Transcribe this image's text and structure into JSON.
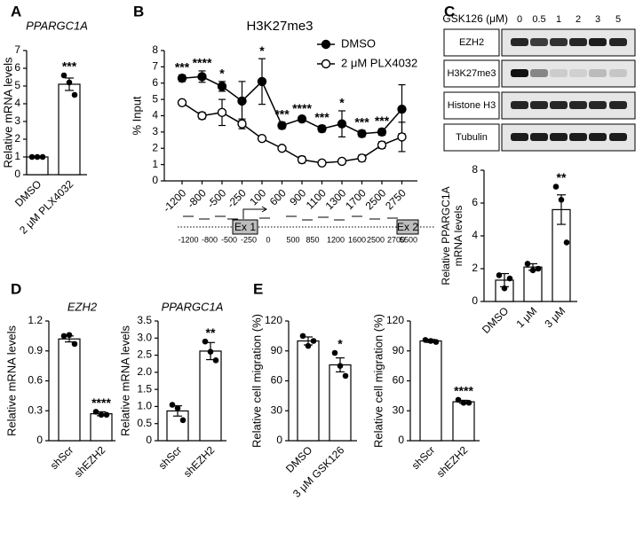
{
  "panel_labels": [
    "A",
    "B",
    "C",
    "D",
    "E"
  ],
  "blot": {
    "header": "GSK126 (μM)",
    "lanes": [
      "0",
      "0.5",
      "1",
      "2",
      "3",
      "5"
    ],
    "rows": [
      "EZH2",
      "H3K27me3",
      "Histone H3",
      "Tubulin"
    ]
  },
  "gene_map": {
    "exons": [
      "Ex 1",
      "Ex 2"
    ],
    "positions": [
      "-1200",
      "-800",
      "-500",
      "-250",
      "0",
      "500",
      "850",
      "1200",
      "1600",
      "2500",
      "2700",
      "5500"
    ]
  },
  "chart_data": [
    {
      "type": "bar",
      "title": "PPARGC1A",
      "ylabel": "Relative mRNA levels",
      "categories": [
        "DMSO",
        "2 μM PLX4032"
      ],
      "values": [
        1.0,
        5.1
      ],
      "errors": [
        0.03,
        0.35
      ],
      "points": [
        [
          1.0,
          1.0,
          1.0
        ],
        [
          5.6,
          5.2,
          4.5
        ]
      ],
      "annotations": [
        null,
        "***"
      ],
      "color": "#ffffff",
      "ylim": [
        0,
        7
      ],
      "yticks": [
        0,
        1,
        2,
        3,
        4,
        5,
        6,
        7
      ]
    },
    {
      "type": "line",
      "title": "H3K27me3",
      "ylabel": "% Input",
      "categories": [
        "-1200",
        "-800",
        "-500",
        "-250",
        "100",
        "600",
        "900",
        "1100",
        "1300",
        "1700",
        "2500",
        "2750"
      ],
      "series": [
        {
          "name": "DMSO",
          "color": "#000000",
          "values": [
            6.3,
            6.4,
            5.8,
            4.9,
            6.1,
            3.4,
            3.8,
            3.2,
            3.5,
            2.9,
            3.0,
            4.4
          ],
          "errors": [
            0.2,
            0.35,
            0.3,
            1.2,
            1.4,
            0.2,
            0.15,
            0.2,
            0.8,
            0.2,
            0.2,
            1.5
          ]
        },
        {
          "name": "2 μM PLX4032",
          "color": "#ffffff",
          "values": [
            4.8,
            4.0,
            4.2,
            3.5,
            2.6,
            2.0,
            1.3,
            1.1,
            1.2,
            1.4,
            2.2,
            2.7
          ],
          "errors": [
            0.1,
            0.2,
            0.8,
            0.3,
            0.1,
            0.1,
            0.2,
            0.1,
            0.1,
            0.2,
            0.2,
            0.9
          ]
        }
      ],
      "annotations": [
        "***",
        "****",
        "*",
        null,
        "*",
        "***",
        "****",
        "***",
        "*",
        "***",
        "***",
        null
      ],
      "ylim": [
        0,
        8
      ],
      "yticks": [
        0,
        1,
        2,
        3,
        4,
        5,
        6,
        7,
        8
      ]
    },
    {
      "type": "bar",
      "ylabel": [
        "Relative PPARGC1A",
        "mRNA levels"
      ],
      "categories": [
        "DMSO",
        "1 μM",
        "3 μM"
      ],
      "values": [
        1.3,
        2.1,
        5.6
      ],
      "errors": [
        0.4,
        0.2,
        0.9
      ],
      "points": [
        [
          1.6,
          0.8,
          1.4
        ],
        [
          2.3,
          1.9,
          2.0
        ],
        [
          7.0,
          6.2,
          3.6
        ]
      ],
      "annotations": [
        null,
        null,
        "**"
      ],
      "color": "#ffffff",
      "ylim": [
        0,
        8
      ],
      "yticks": [
        0,
        2,
        4,
        6,
        8
      ]
    },
    {
      "type": "bar",
      "title": "EZH2",
      "ylabel": "Relative mRNA levels",
      "categories": [
        "shScr",
        "shEZH2"
      ],
      "values": [
        1.02,
        0.27
      ],
      "errors": [
        0.03,
        0.02
      ],
      "points": [
        [
          1.05,
          1.06,
          0.97
        ],
        [
          0.29,
          0.26,
          0.26
        ]
      ],
      "annotations": [
        null,
        "****"
      ],
      "color": "#ffffff",
      "ylim": [
        0,
        1.2
      ],
      "yticks": [
        0,
        0.3,
        0.6,
        0.9,
        1.2
      ]
    },
    {
      "type": "bar",
      "title": "PPARGC1A",
      "ylabel": "Relative mRNA levels",
      "categories": [
        "shScr",
        "shEZH2"
      ],
      "values": [
        0.87,
        2.62
      ],
      "errors": [
        0.15,
        0.25
      ],
      "points": [
        [
          1.05,
          0.95,
          0.6
        ],
        [
          2.9,
          2.6,
          2.35
        ]
      ],
      "annotations": [
        null,
        "**"
      ],
      "color": "#ffffff",
      "ylim": [
        0,
        3.5
      ],
      "yticks": [
        0,
        0.5,
        {
          "value": 1,
          "label": "1.0"
        },
        1.5,
        {
          "value": 2,
          "label": "2.0"
        },
        2.5,
        {
          "value": 3,
          "label": "3.0"
        },
        3.5
      ]
    },
    {
      "type": "bar",
      "ylabel": "Relative cell migration (%)",
      "categories": [
        "DMSO",
        "3 μM GSK126"
      ],
      "values": [
        100,
        76
      ],
      "errors": [
        4,
        7
      ],
      "points": [
        [
          105,
          95,
          100
        ],
        [
          88,
          75,
          65
        ]
      ],
      "annotations": [
        null,
        "*"
      ],
      "color": "#ffffff",
      "ylim": [
        0,
        120
      ],
      "yticks": [
        0,
        30,
        60,
        90,
        120
      ]
    },
    {
      "type": "bar",
      "ylabel": "Relative cell migration (%)",
      "categories": [
        "shScr",
        "shEZH2"
      ],
      "values": [
        100,
        39
      ],
      "errors": [
        1.5,
        1.5
      ],
      "points": [
        [
          101,
          100,
          99
        ],
        [
          41,
          38,
          38
        ]
      ],
      "annotations": [
        null,
        "****"
      ],
      "color": "#ffffff",
      "ylim": [
        0,
        120
      ],
      "yticks": [
        0,
        30,
        60,
        90,
        120
      ]
    }
  ]
}
